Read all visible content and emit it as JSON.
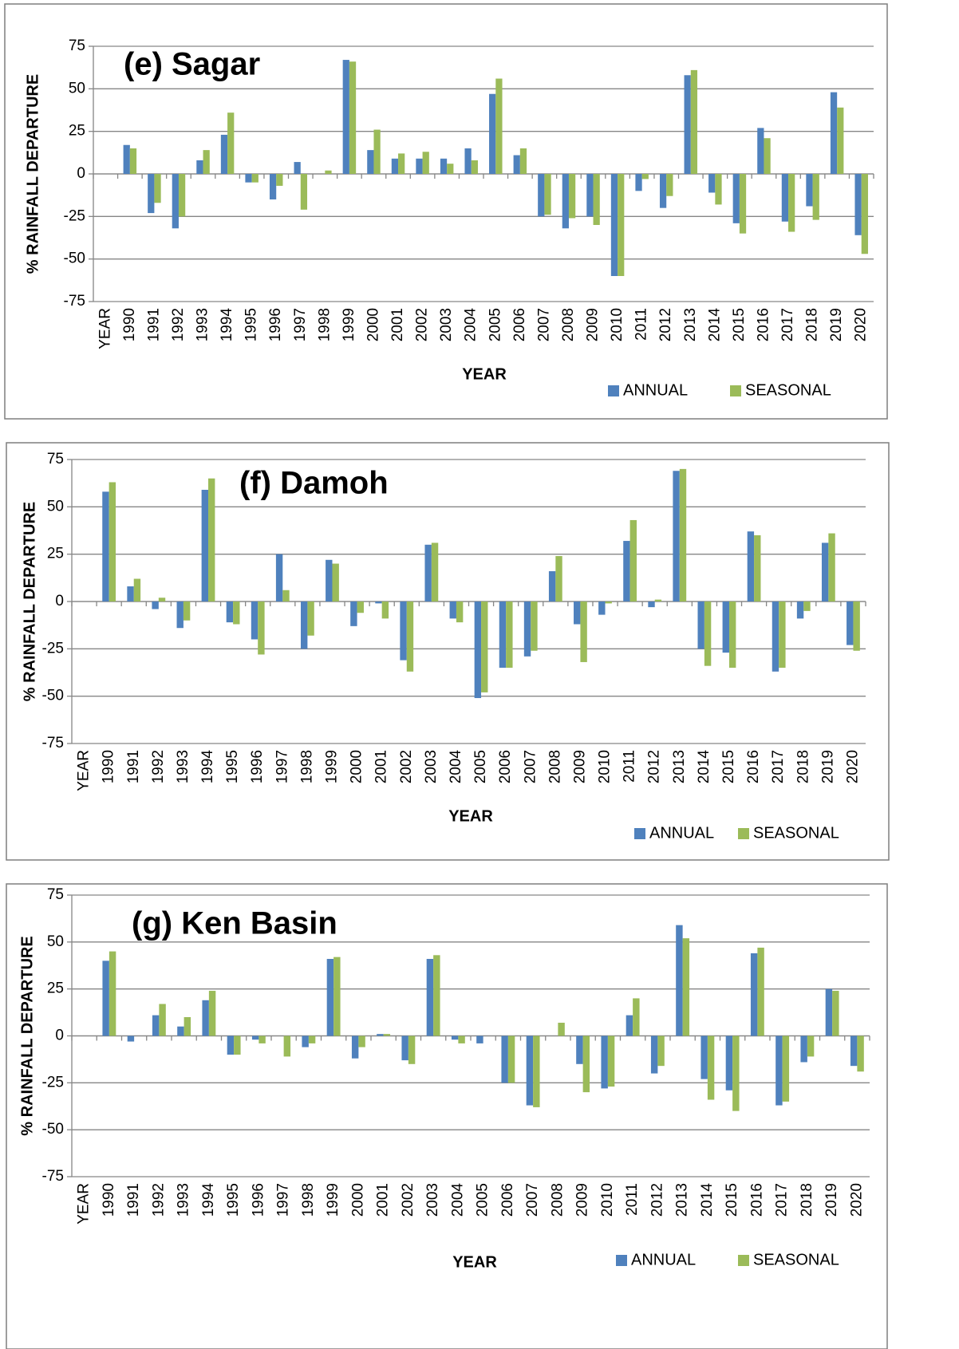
{
  "chart_data": [
    {
      "type": "bar",
      "title": "(e) Sagar",
      "y_label": "% RAINFALL DEPARTURE",
      "x_label": "YEAR",
      "categories": [
        "YEAR",
        "1990",
        "1991",
        "1992",
        "1993",
        "1994",
        "1995",
        "1996",
        "1997",
        "1998",
        "1999",
        "2000",
        "2001",
        "2002",
        "2003",
        "2004",
        "2005",
        "2006",
        "2007",
        "2008",
        "2009",
        "2010",
        "2011",
        "2012",
        "2013",
        "2014",
        "2015",
        "2016",
        "2017",
        "2018",
        "2019",
        "2020"
      ],
      "series": [
        {
          "name": "ANNUAL",
          "color": "#4f81bd",
          "values": [
            null,
            17,
            -23,
            -32,
            8,
            23,
            -5,
            -15,
            7,
            0,
            67,
            14,
            9,
            9,
            9,
            15,
            47,
            11,
            -25,
            -32,
            -25,
            -60,
            -10,
            -20,
            58,
            -11,
            -29,
            27,
            -28,
            -19,
            48,
            -36
          ]
        },
        {
          "name": "SEASONAL",
          "color": "#9bbb59",
          "values": [
            null,
            15,
            -17,
            -25,
            14,
            36,
            -5,
            -7,
            -21,
            2,
            66,
            26,
            12,
            13,
            6,
            8,
            56,
            15,
            -24,
            -26,
            -30,
            -60,
            -3,
            -13,
            61,
            -18,
            -35,
            21,
            -34,
            -27,
            39,
            -47
          ]
        }
      ],
      "ylim": [
        -75,
        75
      ],
      "yticks": [
        75,
        50,
        25,
        0,
        -25,
        -50,
        -75
      ],
      "grid": true,
      "legend": "bottom-right"
    },
    {
      "type": "bar",
      "title": "(f) Damoh",
      "y_label": "% RAINFALL DEPARTURE",
      "x_label": "YEAR",
      "categories": [
        "YEAR",
        "1990",
        "1991",
        "1992",
        "1993",
        "1994",
        "1995",
        "1996",
        "1997",
        "1998",
        "1999",
        "2000",
        "2001",
        "2002",
        "2003",
        "2004",
        "2005",
        "2006",
        "2007",
        "2008",
        "2009",
        "2010",
        "2011",
        "2012",
        "2013",
        "2014",
        "2015",
        "2016",
        "2017",
        "2018",
        "2019",
        "2020"
      ],
      "series": [
        {
          "name": "ANNUAL",
          "color": "#4f81bd",
          "values": [
            null,
            58,
            8,
            -4,
            -14,
            59,
            -11,
            -20,
            25,
            -25,
            22,
            -13,
            -1,
            -31,
            30,
            -9,
            -51,
            -35,
            -29,
            16,
            -12,
            -7,
            32,
            -3,
            69,
            -25,
            -27,
            37,
            -37,
            -9,
            31,
            -23
          ]
        },
        {
          "name": "SEASONAL",
          "color": "#9bbb59",
          "values": [
            null,
            63,
            12,
            2,
            -10,
            65,
            -12,
            -28,
            6,
            -18,
            20,
            -6,
            -9,
            -37,
            31,
            -11,
            -48,
            -35,
            -26,
            24,
            -32,
            -1,
            43,
            1,
            70,
            -34,
            -35,
            35,
            -35,
            -5,
            36,
            -26
          ]
        }
      ],
      "ylim": [
        -75,
        75
      ],
      "yticks": [
        75,
        50,
        25,
        0,
        -25,
        -50,
        -75
      ],
      "grid": true,
      "legend": "bottom-right"
    },
    {
      "type": "bar",
      "title": "(g) Ken Basin",
      "y_label": "% RAINFALL DEPARTURE",
      "x_label": "YEAR",
      "categories": [
        "YEAR",
        "1990",
        "1991",
        "1992",
        "1993",
        "1994",
        "1995",
        "1996",
        "1997",
        "1998",
        "1999",
        "2000",
        "2001",
        "2002",
        "2003",
        "2004",
        "2005",
        "2006",
        "2007",
        "2008",
        "2009",
        "2010",
        "2011",
        "2012",
        "2013",
        "2014",
        "2015",
        "2016",
        "2017",
        "2018",
        "2019",
        "2020"
      ],
      "series": [
        {
          "name": "ANNUAL",
          "color": "#4f81bd",
          "values": [
            null,
            40,
            -3,
            11,
            5,
            19,
            -10,
            -2,
            0,
            -6,
            41,
            -12,
            1,
            -13,
            41,
            -2,
            -4,
            -25,
            -37,
            0,
            -15,
            -28,
            11,
            -20,
            59,
            -23,
            -29,
            44,
            -37,
            -14,
            25,
            -16
          ]
        },
        {
          "name": "SEASONAL",
          "color": "#9bbb59",
          "values": [
            null,
            45,
            0,
            17,
            10,
            24,
            -10,
            -4,
            -11,
            -4,
            42,
            -6,
            1,
            -15,
            43,
            -4,
            0,
            -25,
            -38,
            7,
            -30,
            -27,
            20,
            -16,
            52,
            -34,
            -40,
            47,
            -35,
            -11,
            24,
            -19
          ]
        }
      ],
      "ylim": [
        -75,
        75
      ],
      "yticks": [
        75,
        50,
        25,
        0,
        -25,
        -50,
        -75
      ],
      "grid": true,
      "legend": "bottom-right"
    }
  ]
}
